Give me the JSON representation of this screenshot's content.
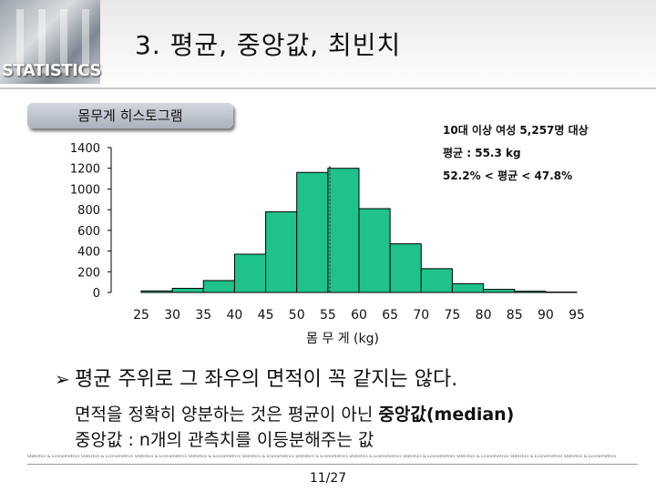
{
  "header": {
    "logo_text": "STATISTICS",
    "title": "3. 평균, 중앙값, 최빈치"
  },
  "chart_label": "몸무게 히스토그램",
  "notes": {
    "population": "10대 이상 여성 5,257명 대상",
    "mean": "평균 : 55.3 kg",
    "split": "52.2% < 평균 < 47.8%"
  },
  "chart_data": {
    "type": "bar",
    "title": "몸무게 히스토그램",
    "xlabel": "몸 무 게 (kg)",
    "ylabel": "",
    "ylim": [
      0,
      1400
    ],
    "y_ticks": [
      0,
      200,
      400,
      600,
      800,
      1000,
      1200,
      1400
    ],
    "x_ticks": [
      25,
      30,
      35,
      40,
      45,
      50,
      55,
      60,
      65,
      70,
      75,
      80,
      85,
      90,
      95
    ],
    "bin_edges": [
      25,
      30,
      35,
      40,
      45,
      50,
      55,
      60,
      65,
      70,
      75,
      80,
      85,
      90,
      95
    ],
    "values": [
      15,
      40,
      115,
      370,
      780,
      1160,
      1200,
      810,
      470,
      230,
      85,
      30,
      12,
      4
    ],
    "mean_line": 55.3,
    "bar_color": "#1ec28a",
    "mean_line_color": "#555555"
  },
  "bullet": "평균 주위로 그 좌우의 면적이 꼭 같지는 않다.",
  "sub1": {
    "prefix": "면적을 정확히 양분하는 것은 평균이 아닌 ",
    "emph": "중앙값(median)"
  },
  "sub2": "중앙값 : n개의 관측치를 이등분해주는 값",
  "footer_text": "Statistics & Econometrics Statistics & Econometrics Statistics & Econometrics Statistics & Econometrics Statistics & Econometrics Statistics & Econometrics Statistics & Econometrics Statistics & Econometrics Statistics & Econometrics Statistics & Econometrics Statistics & Econometrics",
  "page": "11/27"
}
